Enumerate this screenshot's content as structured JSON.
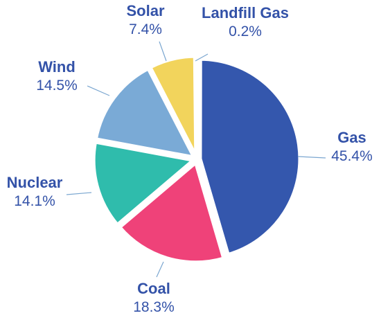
{
  "chart_data": {
    "type": "pie",
    "title": "",
    "label_color": "#3352a8",
    "leader_color": "#7aa6d0",
    "slices": [
      {
        "name": "Landfill Gas",
        "value": 0.2,
        "label": "0.2%",
        "color": "#3a3a3a"
      },
      {
        "name": "Gas",
        "value": 45.4,
        "label": "45.4%",
        "color": "#3457ad"
      },
      {
        "name": "Coal",
        "value": 18.3,
        "label": "18.3%",
        "color": "#ef4279"
      },
      {
        "name": "Nuclear",
        "value": 14.1,
        "label": "14.1%",
        "color": "#2fbcac"
      },
      {
        "name": "Wind",
        "value": 14.5,
        "label": "14.5%",
        "color": "#7aaad6"
      },
      {
        "name": "Solar",
        "value": 7.4,
        "label": "7.4%",
        "color": "#f2d45c"
      }
    ]
  }
}
